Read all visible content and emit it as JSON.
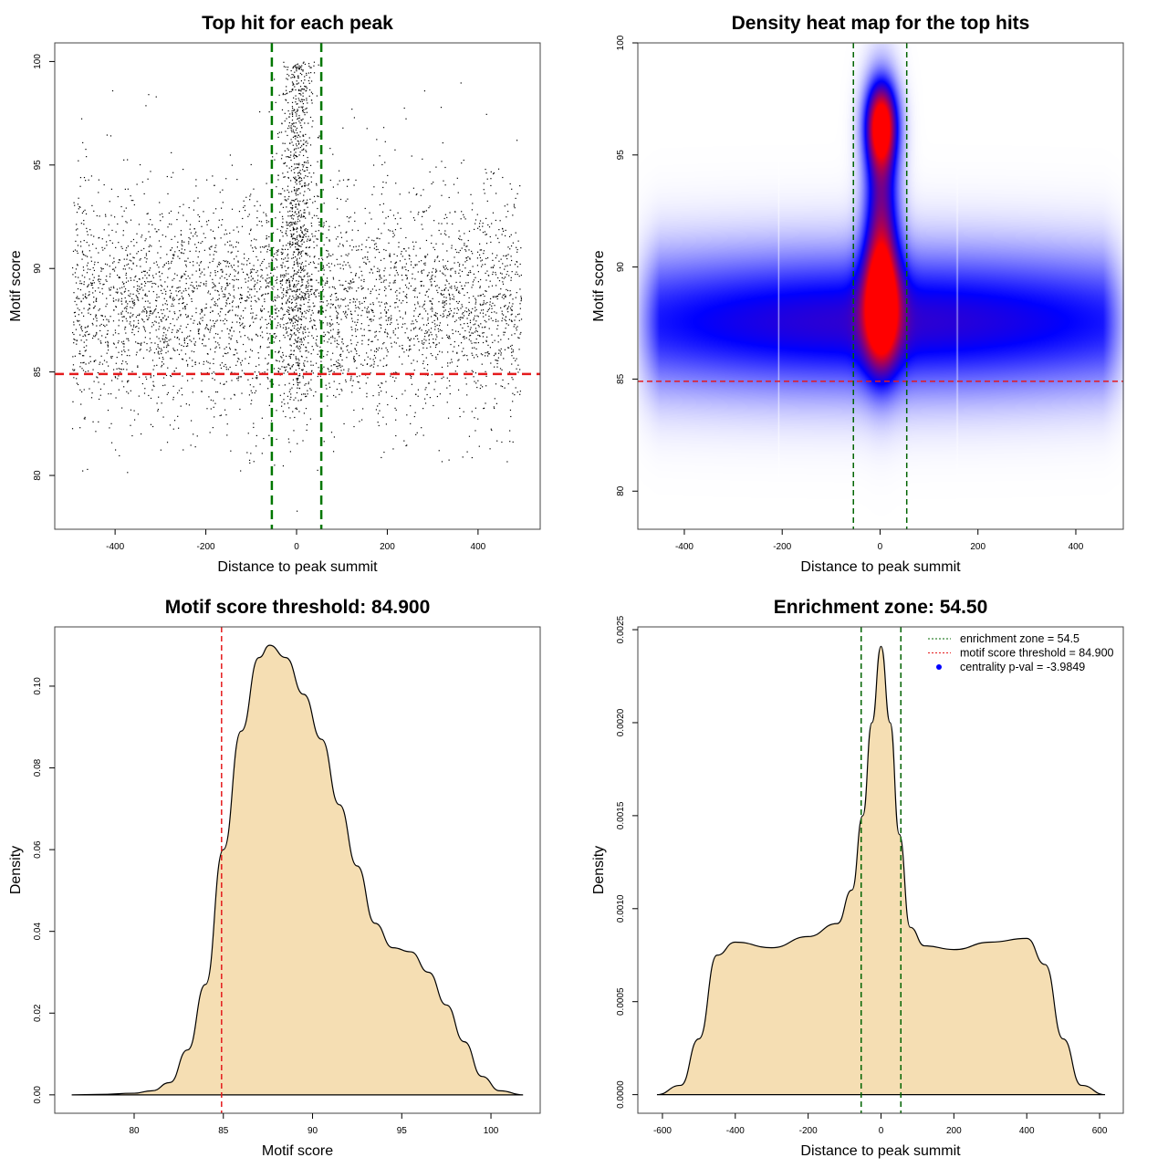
{
  "chart_data": [
    {
      "type": "scatter",
      "title": "Top hit for each peak",
      "xlabel": "Distance to peak summit",
      "ylabel": "Motif score",
      "xlim": [
        -533,
        537
      ],
      "ylim": [
        77.4,
        100.9
      ],
      "xticks": [
        -400,
        -200,
        0,
        200,
        400
      ],
      "yticks": [
        80,
        85,
        90,
        95,
        100
      ],
      "point_generator": {
        "background_n": 4200,
        "background_x_range": [
          -495,
          495
        ],
        "background_y_mean": 88.3,
        "background_y_sd": 3.2,
        "central_n": 900,
        "central_x_sd": 18,
        "central_y_range": [
          83,
          100
        ]
      },
      "hlines": [
        {
          "value": 84.9,
          "color": "#e41a1c",
          "style": "dashed"
        }
      ],
      "vlines": [
        {
          "value": -54.5,
          "color": "#007700",
          "style": "dashed"
        },
        {
          "value": 54.5,
          "color": "#007700",
          "style": "dashed"
        }
      ]
    },
    {
      "type": "heatmap",
      "title": "Density heat map for the top hits",
      "xlabel": "Distance to peak summit",
      "ylabel": "Motif score",
      "xlim": [
        -495,
        497
      ],
      "ylim": [
        78.3,
        100
      ],
      "xticks": [
        -400,
        -200,
        0,
        200,
        400
      ],
      "yticks": [
        80,
        85,
        90,
        95,
        100
      ],
      "colors": [
        "#ffffff",
        "#0000ff",
        "#ff0000"
      ],
      "density_components": [
        {
          "x": 0,
          "y": 87.6,
          "sx": 600,
          "sy": 2.2,
          "w": 0.55
        },
        {
          "x": 0,
          "y": 96.4,
          "sx": 22,
          "sy": 1.3,
          "w": 1.0
        },
        {
          "x": 0,
          "y": 88.2,
          "sx": 25,
          "sy": 1.8,
          "w": 0.75
        },
        {
          "x": 0,
          "y": 92,
          "sx": 24,
          "sy": 3.5,
          "w": 0.65
        }
      ],
      "hlines": [
        {
          "value": 84.9,
          "color": "#e41a1c",
          "style": "dashed"
        }
      ],
      "vlines": [
        {
          "value": -54.5,
          "color": "#006400",
          "style": "dashed"
        },
        {
          "value": 54.5,
          "color": "#006400",
          "style": "dashed"
        }
      ]
    },
    {
      "type": "area",
      "title": "Motif score threshold: 84.900",
      "xlabel": "Motif score",
      "ylabel": "Density",
      "xlim": [
        75.55,
        102.76
      ],
      "ylim": [
        -0.0045,
        0.1145
      ],
      "xticks": [
        80,
        85,
        90,
        95,
        100
      ],
      "yticks": [
        "0.00",
        "0.02",
        "0.04",
        "0.06",
        "0.08",
        "0.10"
      ],
      "fill": "#f5deb3",
      "x": [
        76.5,
        78,
        80,
        81,
        82,
        83,
        84,
        85,
        86,
        87,
        87.6,
        88.5,
        89.5,
        90.5,
        91.5,
        92.5,
        93.5,
        94.5,
        95.5,
        96.5,
        97.5,
        98.5,
        99.5,
        100.5,
        101.8
      ],
      "y": [
        0,
        0.0001,
        0.0004,
        0.001,
        0.003,
        0.011,
        0.027,
        0.06,
        0.089,
        0.107,
        0.11,
        0.107,
        0.098,
        0.087,
        0.071,
        0.056,
        0.042,
        0.036,
        0.035,
        0.03,
        0.022,
        0.013,
        0.0045,
        0.001,
        0
      ],
      "vlines": [
        {
          "value": 84.9,
          "color": "#e41a1c",
          "style": "dashed"
        }
      ]
    },
    {
      "type": "area",
      "title": "Enrichment zone: 54.50",
      "xlabel": "Distance to peak summit",
      "ylabel": "Density",
      "xlim": [
        -667.5,
        665
      ],
      "ylim": [
        -0.0001,
        0.002515
      ],
      "xticks": [
        -600,
        -400,
        -200,
        0,
        200,
        400,
        600
      ],
      "yticks": [
        "0.0000",
        "0.0005",
        "0.0010",
        "0.0015",
        "0.0020",
        "0.0025"
      ],
      "fill": "#f5deb3",
      "x": [
        -615,
        -550,
        -500,
        -450,
        -400,
        -300,
        -200,
        -120,
        -80,
        -50,
        -25,
        0,
        25,
        50,
        80,
        120,
        200,
        300,
        400,
        450,
        500,
        550,
        615
      ],
      "y": [
        0,
        5e-05,
        0.0003,
        0.00075,
        0.00082,
        0.00079,
        0.00085,
        0.00092,
        0.0011,
        0.0015,
        0.002,
        0.00241,
        0.002,
        0.0014,
        0.0009,
        0.0008,
        0.00078,
        0.00082,
        0.00084,
        0.0007,
        0.0003,
        5e-05,
        0
      ],
      "vlines": [
        {
          "value": -54.5,
          "color": "#006400",
          "style": "dashed"
        },
        {
          "value": 54.5,
          "color": "#006400",
          "style": "dashed"
        }
      ],
      "legend": {
        "position": "top-right",
        "entries": [
          {
            "label": "enrichment zone = 54.5",
            "color": "#006400",
            "symbol": "dotted-line"
          },
          {
            "label": "motif score threshold = 84.900",
            "color": "#e41a1c",
            "symbol": "dotted-line"
          },
          {
            "label": "centrality p-val = -3.9849",
            "color": "#0000ff",
            "symbol": "point"
          }
        ]
      }
    }
  ]
}
